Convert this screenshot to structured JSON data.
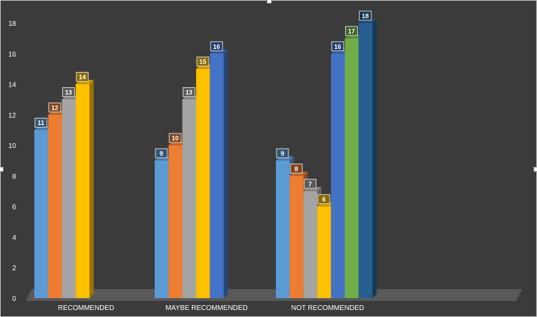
{
  "chart_data": {
    "type": "bar",
    "style": "3d-clustered-column",
    "categories": [
      "RECOMMENDED",
      "MAYBE RECOMMENDED",
      "NOT RECOMMENDED"
    ],
    "series": [
      {
        "color": "#5b9bd5",
        "values": [
          11,
          9,
          9
        ]
      },
      {
        "color": "#ed7d31",
        "values": [
          12,
          10,
          8
        ]
      },
      {
        "color": "#a5a5a5",
        "values": [
          13,
          13,
          7
        ]
      },
      {
        "color": "#ffc000",
        "values": [
          14,
          15,
          6
        ]
      },
      {
        "color": "#4472c4",
        "values": [
          null,
          16,
          16
        ]
      },
      {
        "color": "#70ad47",
        "values": [
          null,
          null,
          17
        ]
      },
      {
        "color": "#255e91",
        "values": [
          null,
          null,
          18
        ]
      }
    ],
    "yticks": [
      "0",
      "2",
      "4",
      "6",
      "8",
      "10",
      "12",
      "14",
      "16",
      "18"
    ],
    "ylim": [
      0,
      18
    ],
    "grid": false,
    "legend": "none",
    "data_labels": true,
    "background": "#3b3b3b",
    "floor_color": "#595959"
  }
}
